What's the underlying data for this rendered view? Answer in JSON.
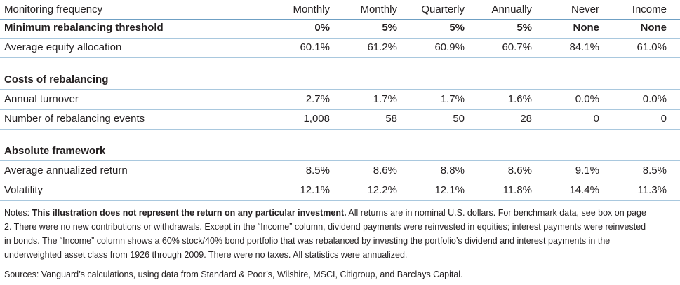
{
  "table": {
    "header": [
      "Monitoring frequency",
      "Monthly",
      "Monthly",
      "Quarterly",
      "Annually",
      "Never",
      "Income"
    ],
    "sections": [
      {
        "rows": [
          [
            "Minimum rebalancing threshold",
            "0%",
            "5%",
            "5%",
            "5%",
            "None",
            "None"
          ],
          [
            "Average equity allocation",
            "60.1%",
            "61.2%",
            "60.9%",
            "60.7%",
            "84.1%",
            "61.0%"
          ]
        ]
      },
      {
        "title": "Costs of rebalancing",
        "rows": [
          [
            "Annual turnover",
            "2.7%",
            "1.7%",
            "1.7%",
            "1.6%",
            "0.0%",
            "0.0%"
          ],
          [
            "Number of rebalancing events",
            "1,008",
            "58",
            "50",
            "28",
            "0",
            "0"
          ]
        ]
      },
      {
        "title": "Absolute framework",
        "rows": [
          [
            "Average annualized return",
            "8.5%",
            "8.6%",
            "8.8%",
            "8.6%",
            "9.1%",
            "8.5%"
          ],
          [
            "Volatility",
            "12.1%",
            "12.2%",
            "12.1%",
            "11.8%",
            "14.4%",
            "11.3%"
          ]
        ]
      }
    ]
  },
  "notes": {
    "label": "Notes:",
    "emphasis": "This illustration does not represent the return on any particular investment.",
    "text": "All returns are in nominal U.S. dollars. For benchmark data, see box on page 2. There were no new contributions or withdrawals. Except in the “Income” column, dividend payments were reinvested in equities; interest payments were reinvested in bonds. The “Income” column shows a 60% stock/40% bond portfolio that was rebalanced by investing the portfolio’s dividend and interest payments in the underweighted asset class from 1926 through 2009. There were no taxes. All statistics were annualized."
  },
  "sources": "Sources: Vanguard’s calculations, using data from Standard & Poor’s, Wilshire, MSCI, Citigroup, and Barclays Capital."
}
